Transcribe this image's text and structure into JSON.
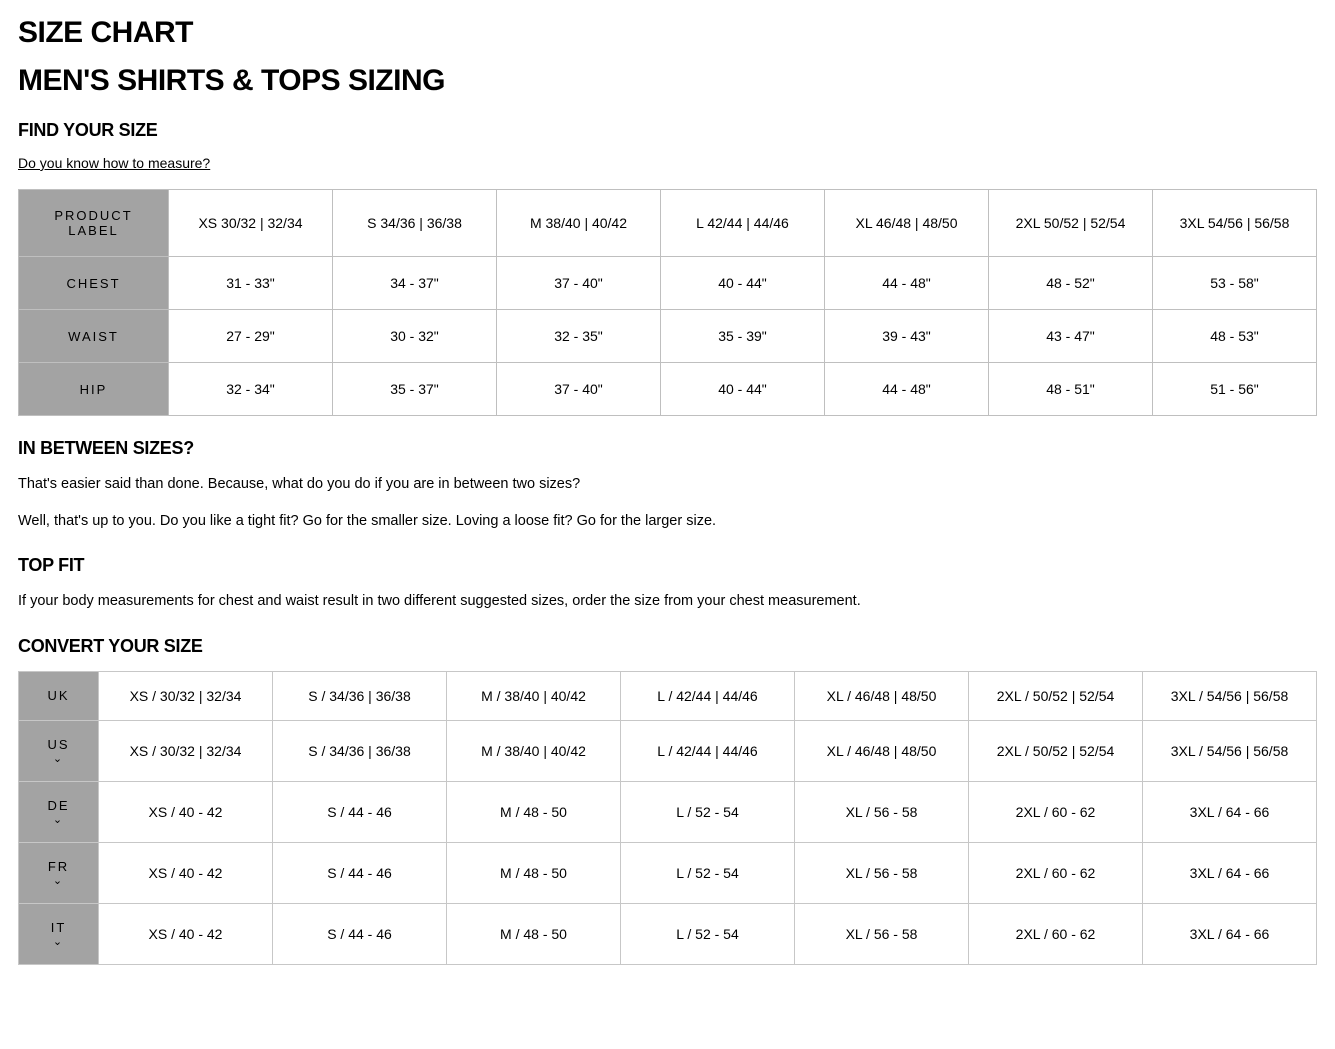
{
  "title": "SIZE CHART",
  "subtitle": "MEN'S SHIRTS & TOPS SIZING",
  "find_your_size": "FIND YOUR SIZE",
  "measure_link": "Do you know how to measure?",
  "size_table": {
    "header_label": "PRODUCT LABEL",
    "columns": [
      "XS 30/32 | 32/34",
      "S 34/36 | 36/38",
      "M 38/40 | 40/42",
      "L 42/44 | 44/46",
      "XL 46/48 | 48/50",
      "2XL 50/52 | 52/54",
      "3XL 54/56 | 56/58"
    ],
    "rows": [
      {
        "label": "CHEST",
        "cells": [
          "31 - 33\"",
          "34 - 37\"",
          "37 - 40\"",
          "40 - 44\"",
          "44 - 48\"",
          "48 - 52\"",
          "53 - 58\""
        ]
      },
      {
        "label": "WAIST",
        "cells": [
          "27 - 29\"",
          "30 - 32\"",
          "32 - 35\"",
          "35 - 39\"",
          "39 - 43\"",
          "43 - 47\"",
          "48 - 53\""
        ]
      },
      {
        "label": "HIP",
        "cells": [
          "32 - 34\"",
          "35 - 37\"",
          "37 - 40\"",
          "40 - 44\"",
          "44 - 48\"",
          "48 - 51\"",
          "51 - 56\""
        ]
      }
    ]
  },
  "between": {
    "heading": "IN BETWEEN SIZES?",
    "p1": "That's easier said than done. Because, what do you do if you are in between two sizes?",
    "p2": "Well, that's up to you. Do you like a tight fit? Go for the smaller size. Loving a loose fit? Go for the larger size."
  },
  "top_fit": {
    "heading": "TOP FIT",
    "p1": "If your body measurements for chest and waist result in two different suggested sizes, order the size from your chest measurement."
  },
  "convert": {
    "heading": "CONVERT YOUR SIZE",
    "rows": [
      {
        "label": "UK",
        "expandable": false,
        "cells": [
          "XS / 30/32 | 32/34",
          "S / 34/36 | 36/38",
          "M / 38/40 | 40/42",
          "L / 42/44 | 44/46",
          "XL / 46/48 | 48/50",
          "2XL / 50/52 | 52/54",
          "3XL / 54/56 | 56/58"
        ]
      },
      {
        "label": "US",
        "expandable": true,
        "cells": [
          "XS / 30/32 | 32/34",
          "S / 34/36 | 36/38",
          "M / 38/40 | 40/42",
          "L / 42/44 | 44/46",
          "XL / 46/48 | 48/50",
          "2XL / 50/52 | 52/54",
          "3XL / 54/56 | 56/58"
        ]
      },
      {
        "label": "DE",
        "expandable": true,
        "cells": [
          "XS / 40 - 42",
          "S / 44 - 46",
          "M / 48 - 50",
          "L / 52 - 54",
          "XL / 56 - 58",
          "2XL / 60 - 62",
          "3XL / 64 - 66"
        ]
      },
      {
        "label": "FR",
        "expandable": true,
        "cells": [
          "XS / 40 - 42",
          "S / 44 - 46",
          "M / 48 - 50",
          "L / 52 - 54",
          "XL / 56 - 58",
          "2XL / 60 - 62",
          "3XL / 64 - 66"
        ]
      },
      {
        "label": "IT",
        "expandable": true,
        "cells": [
          "XS / 40 - 42",
          "S / 44 - 46",
          "M / 48 - 50",
          "L / 52 - 54",
          "XL / 56 - 58",
          "2XL / 60 - 62",
          "3XL / 64 - 66"
        ]
      }
    ]
  },
  "style": {
    "header_bg": "#a3a3a3",
    "border_color": "#bfbfbf",
    "text_color": "#000000",
    "background": "#ffffff"
  }
}
